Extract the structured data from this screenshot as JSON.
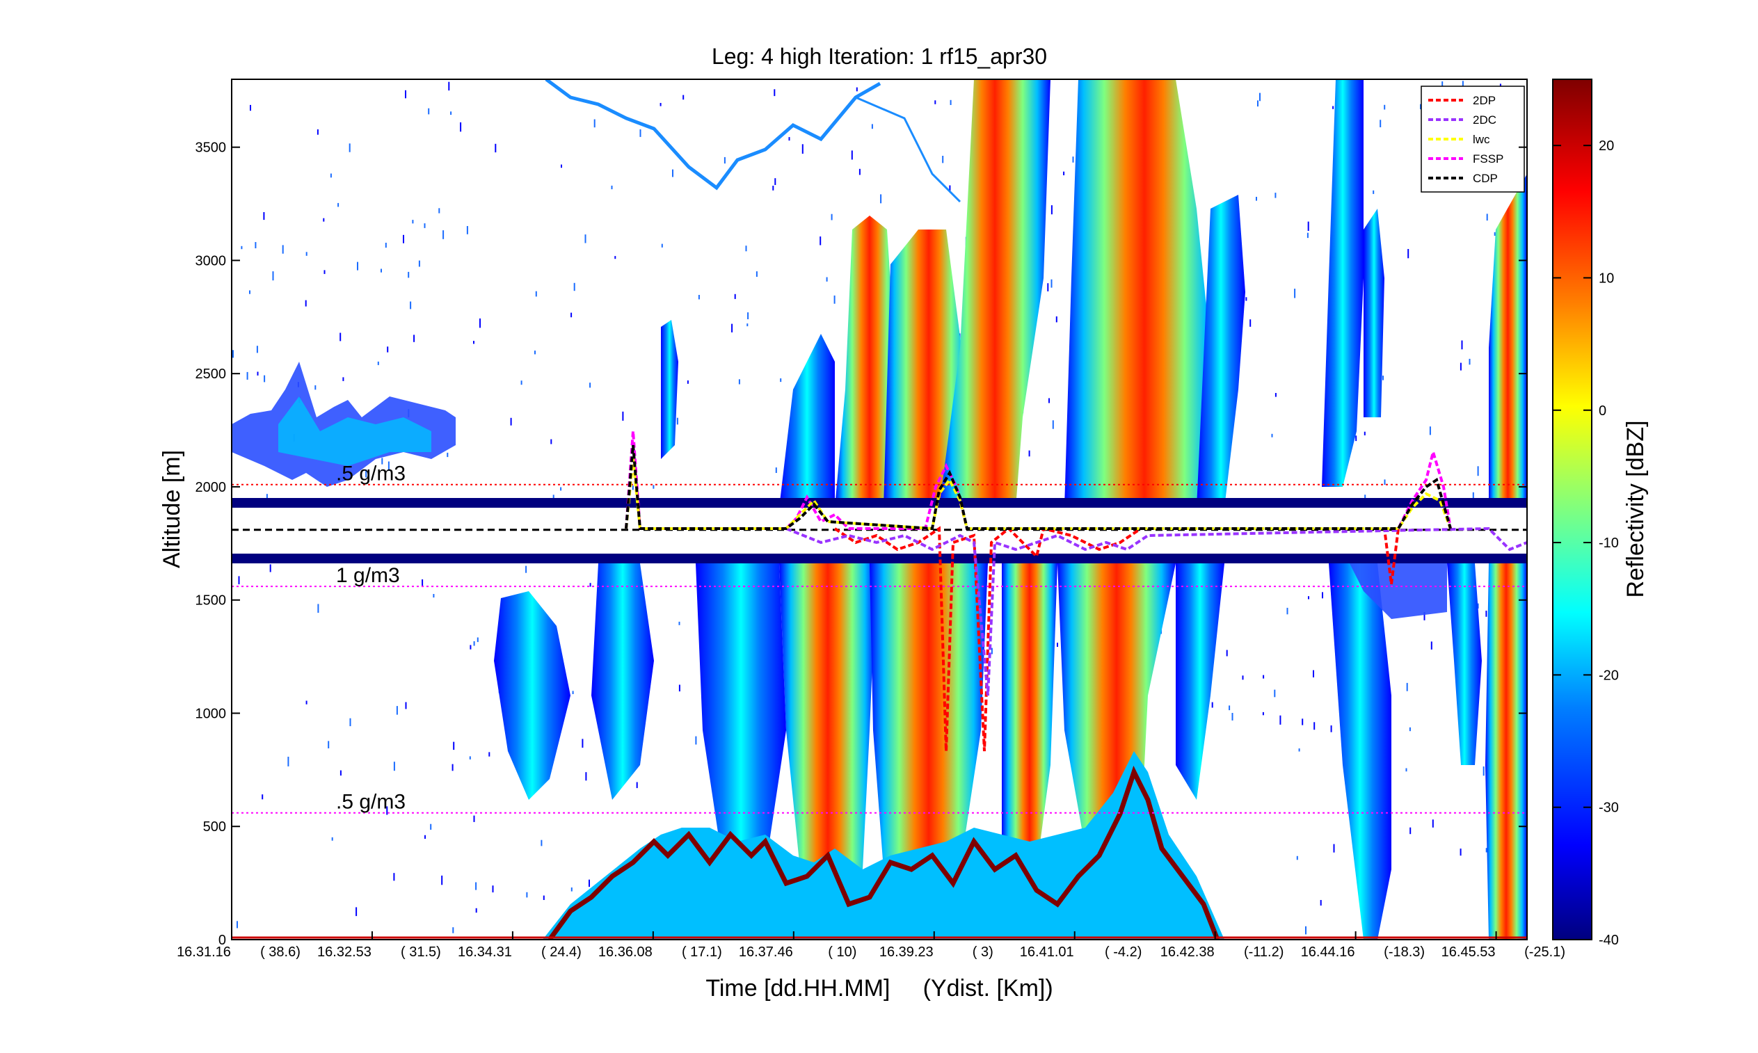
{
  "chart_data": {
    "type": "heatmap",
    "title": "Leg: 4 high Iteration: 1  rf15_apr30",
    "xlabel": "Time [dd.HH.MM]     (Ydist. [Km])",
    "ylabel": "Altitude [m]",
    "colorbar_label": "Reflectivity [dBZ]",
    "ylim": [
      0,
      3800
    ],
    "y_ticks": [
      0,
      500,
      1000,
      1500,
      2000,
      2500,
      3000,
      3500
    ],
    "x_ticks": [
      {
        "time": "16.31.16",
        "ydist": "( 38.6)"
      },
      {
        "time": "16.32.53",
        "ydist": "( 31.5)"
      },
      {
        "time": "16.34.31",
        "ydist": "( 24.4)"
      },
      {
        "time": "16.36.08",
        "ydist": "( 17.1)"
      },
      {
        "time": "16.37.46",
        "ydist": "(  10)"
      },
      {
        "time": "16.39.23",
        "ydist": "(  3)"
      },
      {
        "time": "16.41.01",
        "ydist": "( -4.2)"
      },
      {
        "time": "16.42.38",
        "ydist": "(-11.2)"
      },
      {
        "time": "16.44.16",
        "ydist": "(-18.3)"
      },
      {
        "time": "16.45.53",
        "ydist": "(-25.1)"
      }
    ],
    "colorbar_ticks": [
      20,
      10,
      0,
      -10,
      -20,
      -30,
      -40
    ],
    "colorbar_range": [
      -40,
      25
    ],
    "colormap": [
      "#00007f",
      "#0000ff",
      "#007fff",
      "#00ffff",
      "#7fff7f",
      "#ffff00",
      "#ff7f00",
      "#ff0000",
      "#7f0000"
    ],
    "legend": {
      "placement": "top-right",
      "items": [
        {
          "label": "2DP",
          "color": "#ff0000"
        },
        {
          "label": "2DC",
          "color": "#9933ff"
        },
        {
          "label": "lwc",
          "color": "#ffff00"
        },
        {
          "label": "FSSP",
          "color": "#ff00ff"
        },
        {
          "label": "CDP",
          "color": "#000000"
        }
      ]
    },
    "reference_lines": [
      {
        "label": ".5 g/m3",
        "altitude": 2010,
        "color": "#ff0000"
      },
      {
        "label": "1 g/m3",
        "altitude": 1560,
        "color": "#ff00ff"
      },
      {
        "label": ".5 g/m3",
        "altitude": 560,
        "color": "#ff00ff"
      }
    ],
    "flight_altitude": 1810,
    "grid": false
  }
}
